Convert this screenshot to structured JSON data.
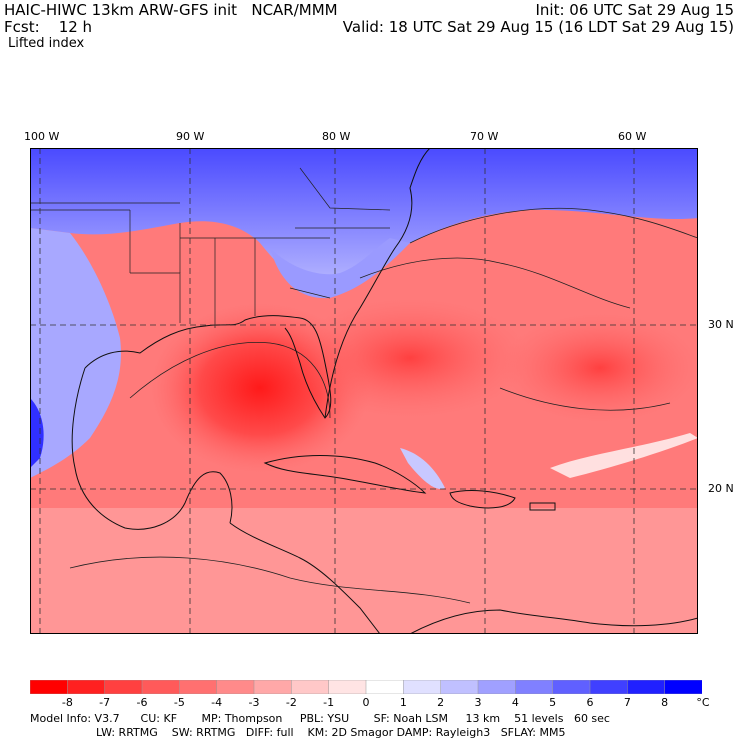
{
  "header": {
    "title_left": "HAIC-HIWC 13km ARW-GFS init   NCAR/MMM",
    "fcst_label": "Fcst:    12 h",
    "init": "Init: 06 UTC Sat 29 Aug 15",
    "valid": "Valid: 18 UTC Sat 29 Aug 15 (16 LDT Sat 29 Aug 15)",
    "field": "Lifted index"
  },
  "axes": {
    "lon_labels": [
      "100 W",
      "90 W",
      "80 W",
      "70 W",
      "60 W"
    ],
    "lat_labels": [
      "30 N",
      "20 N"
    ]
  },
  "colorbar": {
    "ticks": [
      "-8",
      "-7",
      "-6",
      "-5",
      "-4",
      "-3",
      "-2",
      "-1",
      "0",
      "1",
      "2",
      "3",
      "4",
      "5",
      "6",
      "7",
      "8"
    ],
    "unit": "°C",
    "colors": [
      "#ff0000",
      "#ff2020",
      "#ff4040",
      "#ff5a5a",
      "#ff7070",
      "#ff8a8a",
      "#ffa8a8",
      "#ffc8c8",
      "#ffe4e4",
      "#ffffff",
      "#e0e0ff",
      "#c0c0ff",
      "#a0a0ff",
      "#8080ff",
      "#6060ff",
      "#4040ff",
      "#2020ff",
      "#0000ff"
    ]
  },
  "model_info": {
    "line1": "Model Info: V3.7      CU: KF       MP: Thompson     PBL: YSU       SF: Noah LSM     13 km    51 levels   60 sec",
    "line2": "LW: RRTMG    SW: RRTMG   DIFF: full    KM: 2D Smagor DAMP: Rayleigh3   SFLAY: MM5"
  }
}
